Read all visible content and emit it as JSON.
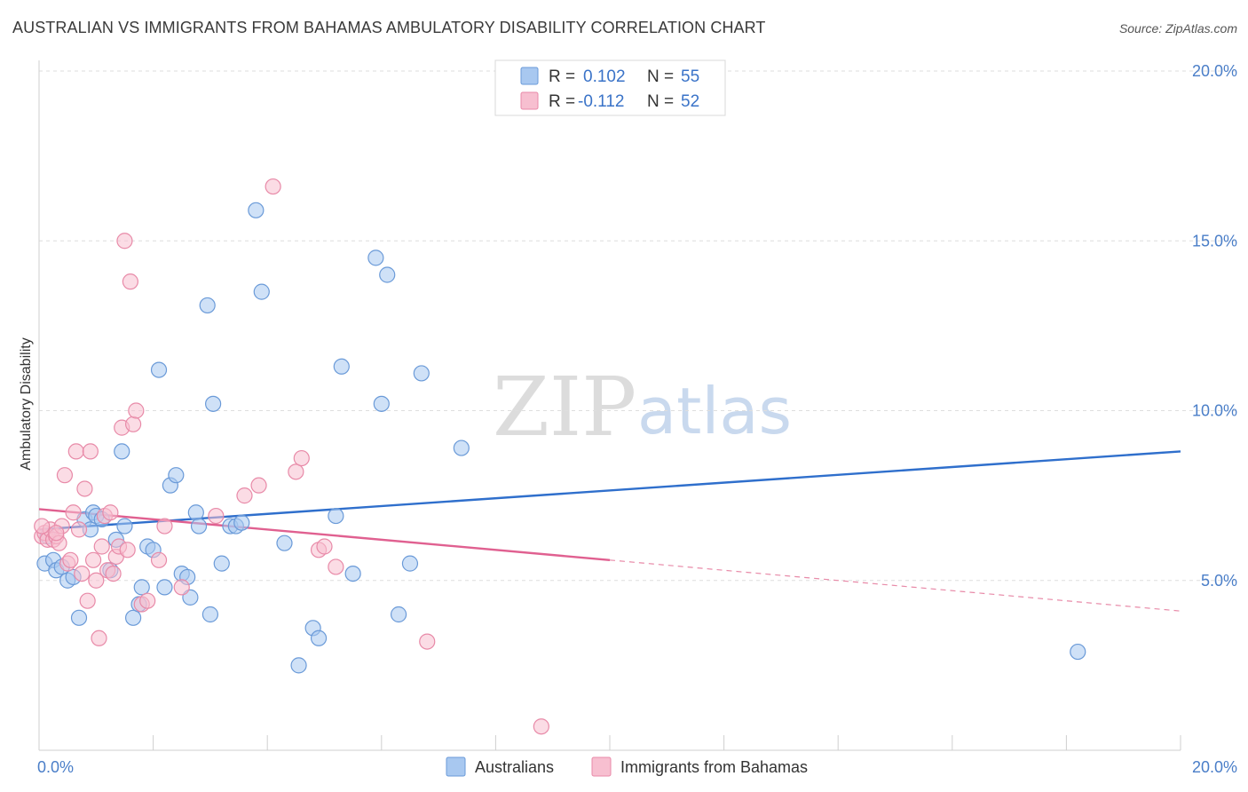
{
  "header": {
    "title": "AUSTRALIAN VS IMMIGRANTS FROM BAHAMAS AMBULATORY DISABILITY CORRELATION CHART",
    "source": "Source: ZipAtlas.com"
  },
  "watermark": {
    "zip": "ZIP",
    "atlas": "atlas"
  },
  "legend": {
    "rows": [
      {
        "r_label": "R =",
        "r_value": "0.102",
        "n_label": "N =",
        "n_value": "55",
        "color": "#a8c8f0",
        "stroke": "#6a9ad8"
      },
      {
        "r_label": "R =",
        "r_value": "-0.112",
        "n_label": "N =",
        "n_value": "52",
        "color": "#f7bfd0",
        "stroke": "#e88aa8"
      }
    ]
  },
  "bottom_legend": {
    "items": [
      {
        "label": "Australians",
        "color": "#a8c8f0",
        "stroke": "#6a9ad8"
      },
      {
        "label": "Immigrants from Bahamas",
        "color": "#f7bfd0",
        "stroke": "#e88aa8"
      }
    ]
  },
  "chart_data": {
    "type": "scatter",
    "title": "AUSTRALIAN VS IMMIGRANTS FROM BAHAMAS AMBULATORY DISABILITY CORRELATION CHART",
    "xlabel": "",
    "ylabel": "Ambulatory Disability",
    "xlim": [
      0,
      20
    ],
    "ylim": [
      0,
      20
    ],
    "x_ticks": [
      {
        "value": 0,
        "label": "0.0%"
      },
      {
        "value": 20,
        "label": "20.0%"
      }
    ],
    "y_ticks": [
      {
        "value": 5,
        "label": "5.0%"
      },
      {
        "value": 10,
        "label": "10.0%"
      },
      {
        "value": 15,
        "label": "15.0%"
      },
      {
        "value": 20,
        "label": "20.0%"
      }
    ],
    "grid": true,
    "legend_position": "top-center",
    "series": [
      {
        "name": "Australians",
        "color": "#6a9ad8",
        "fill": "#a8c8f0",
        "trend": {
          "x": [
            0,
            20
          ],
          "y": [
            6.5,
            8.8
          ],
          "color": "#2f6fcc"
        },
        "points": [
          [
            0.1,
            5.5
          ],
          [
            0.15,
            6.3
          ],
          [
            0.25,
            5.6
          ],
          [
            0.3,
            5.3
          ],
          [
            0.4,
            5.4
          ],
          [
            0.5,
            5.0
          ],
          [
            0.6,
            5.1
          ],
          [
            0.7,
            3.9
          ],
          [
            0.8,
            6.8
          ],
          [
            0.9,
            6.5
          ],
          [
            0.95,
            7.0
          ],
          [
            1.0,
            6.9
          ],
          [
            1.1,
            6.8
          ],
          [
            1.25,
            5.3
          ],
          [
            1.35,
            6.2
          ],
          [
            1.45,
            8.8
          ],
          [
            1.5,
            6.6
          ],
          [
            1.65,
            3.9
          ],
          [
            1.75,
            4.3
          ],
          [
            1.8,
            4.8
          ],
          [
            1.9,
            6.0
          ],
          [
            2.0,
            5.9
          ],
          [
            2.1,
            11.2
          ],
          [
            2.2,
            4.8
          ],
          [
            2.3,
            7.8
          ],
          [
            2.4,
            8.1
          ],
          [
            2.5,
            5.2
          ],
          [
            2.6,
            5.1
          ],
          [
            2.65,
            4.5
          ],
          [
            2.75,
            7.0
          ],
          [
            2.8,
            6.6
          ],
          [
            2.95,
            13.1
          ],
          [
            3.0,
            4.0
          ],
          [
            3.05,
            10.2
          ],
          [
            3.2,
            5.5
          ],
          [
            3.35,
            6.6
          ],
          [
            3.45,
            6.6
          ],
          [
            3.55,
            6.7
          ],
          [
            3.8,
            15.9
          ],
          [
            3.9,
            13.5
          ],
          [
            4.3,
            6.1
          ],
          [
            4.55,
            2.5
          ],
          [
            4.8,
            3.6
          ],
          [
            4.9,
            3.3
          ],
          [
            5.2,
            6.9
          ],
          [
            5.3,
            11.3
          ],
          [
            5.5,
            5.2
          ],
          [
            5.9,
            14.5
          ],
          [
            6.0,
            10.2
          ],
          [
            6.1,
            14.0
          ],
          [
            6.3,
            4.0
          ],
          [
            6.5,
            5.5
          ],
          [
            6.7,
            11.1
          ],
          [
            7.4,
            8.9
          ],
          [
            18.2,
            2.9
          ]
        ]
      },
      {
        "name": "Immigrants from Bahamas",
        "color": "#e88aa8",
        "fill": "#f7bfd0",
        "trend": {
          "x": [
            0,
            10
          ],
          "y": [
            7.1,
            5.6
          ],
          "color": "#e06090"
        },
        "trend_dashed": {
          "x": [
            10,
            20
          ],
          "y": [
            5.6,
            4.1
          ],
          "color": "#e88aa8"
        },
        "points": [
          [
            0.05,
            6.3
          ],
          [
            0.1,
            6.4
          ],
          [
            0.15,
            6.2
          ],
          [
            0.2,
            6.5
          ],
          [
            0.25,
            6.2
          ],
          [
            0.3,
            6.3
          ],
          [
            0.35,
            6.1
          ],
          [
            0.4,
            6.6
          ],
          [
            0.45,
            8.1
          ],
          [
            0.5,
            5.5
          ],
          [
            0.55,
            5.6
          ],
          [
            0.6,
            7.0
          ],
          [
            0.65,
            8.8
          ],
          [
            0.7,
            6.5
          ],
          [
            0.75,
            5.2
          ],
          [
            0.8,
            7.7
          ],
          [
            0.85,
            4.4
          ],
          [
            0.9,
            8.8
          ],
          [
            0.95,
            5.6
          ],
          [
            1.0,
            5.0
          ],
          [
            1.05,
            3.3
          ],
          [
            1.1,
            6.0
          ],
          [
            1.15,
            6.9
          ],
          [
            1.2,
            5.3
          ],
          [
            1.25,
            7.0
          ],
          [
            1.3,
            5.2
          ],
          [
            1.35,
            5.7
          ],
          [
            1.4,
            6.0
          ],
          [
            1.45,
            9.5
          ],
          [
            1.5,
            15.0
          ],
          [
            1.55,
            5.9
          ],
          [
            1.6,
            13.8
          ],
          [
            1.65,
            9.6
          ],
          [
            1.7,
            10.0
          ],
          [
            1.8,
            4.3
          ],
          [
            1.9,
            4.4
          ],
          [
            2.1,
            5.6
          ],
          [
            2.2,
            6.6
          ],
          [
            2.5,
            4.8
          ],
          [
            3.1,
            6.9
          ],
          [
            3.6,
            7.5
          ],
          [
            3.85,
            7.8
          ],
          [
            4.1,
            16.6
          ],
          [
            4.5,
            8.2
          ],
          [
            4.6,
            8.6
          ],
          [
            4.9,
            5.9
          ],
          [
            5.0,
            6.0
          ],
          [
            5.2,
            5.4
          ],
          [
            6.8,
            3.2
          ],
          [
            8.8,
            0.7
          ],
          [
            0.05,
            6.6
          ],
          [
            0.3,
            6.4
          ]
        ]
      }
    ]
  }
}
